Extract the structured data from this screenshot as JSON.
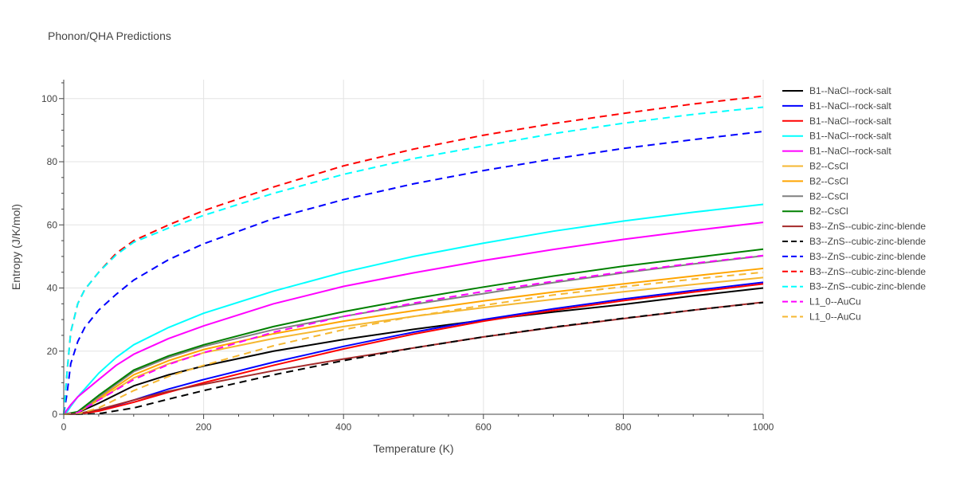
{
  "chart_data": {
    "type": "line",
    "title": "Phonon/QHA Predictions",
    "xlabel": "Temperature (K)",
    "ylabel": "Entropy (J/K/mol)",
    "xlim": [
      0,
      1000
    ],
    "ylim": [
      0,
      106
    ],
    "x_ticks": [
      0,
      200,
      400,
      600,
      800,
      1000
    ],
    "y_ticks": [
      0,
      20,
      40,
      60,
      80,
      100
    ],
    "grid": true,
    "legend_position": "right",
    "series": [
      {
        "name": "B1--NaCl--rock-salt",
        "color": "#000000",
        "dash": "solid",
        "x": [
          0,
          20,
          50,
          100,
          150,
          200,
          300,
          400,
          500,
          600,
          700,
          800,
          900,
          1000
        ],
        "y": [
          0,
          0.5,
          3.5,
          9,
          12.5,
          15.3,
          20,
          23.7,
          26.9,
          29.8,
          32.4,
          34.8,
          37.5,
          40
        ]
      },
      {
        "name": "B1--NaCl--rock-salt",
        "color": "#0000ff",
        "dash": "solid",
        "x": [
          0,
          20,
          50,
          100,
          150,
          200,
          300,
          400,
          500,
          600,
          700,
          800,
          900,
          1000
        ],
        "y": [
          0,
          0.1,
          1.2,
          4.5,
          8,
          11,
          16.5,
          21.5,
          26,
          30,
          33.4,
          36.5,
          39.2,
          41.8
        ]
      },
      {
        "name": "B1--NaCl--rock-salt",
        "color": "#ff0000",
        "dash": "solid",
        "x": [
          0,
          20,
          50,
          100,
          150,
          200,
          300,
          400,
          500,
          600,
          700,
          800,
          900,
          1000
        ],
        "y": [
          0,
          0.1,
          1,
          3.8,
          7,
          10,
          15.5,
          20.7,
          25.4,
          29.5,
          32.9,
          36,
          38.7,
          41.3
        ]
      },
      {
        "name": "B1--NaCl--rock-salt",
        "color": "#00ffff",
        "dash": "solid",
        "x": [
          0,
          5,
          10,
          20,
          50,
          75,
          100,
          150,
          200,
          300,
          400,
          500,
          600,
          700,
          800,
          900,
          1000
        ],
        "y": [
          0,
          0.8,
          2.5,
          5.5,
          13,
          18,
          22,
          27.5,
          32,
          39,
          45,
          50,
          54.2,
          58,
          61.2,
          64,
          66.5
        ]
      },
      {
        "name": "B1--NaCl--rock-salt",
        "color": "#ff00ff",
        "dash": "solid",
        "x": [
          0,
          5,
          10,
          20,
          50,
          75,
          100,
          150,
          200,
          300,
          400,
          500,
          600,
          700,
          800,
          900,
          1000
        ],
        "y": [
          0,
          1.5,
          3,
          5.5,
          11,
          15.5,
          19,
          24,
          28,
          35,
          40.5,
          44.8,
          48.7,
          52.2,
          55.4,
          58.2,
          60.8
        ]
      },
      {
        "name": "B2--CsCl",
        "color": "#f5b731",
        "dash": "solid",
        "x": [
          0,
          20,
          50,
          100,
          150,
          200,
          300,
          400,
          500,
          600,
          700,
          800,
          900,
          1000
        ],
        "y": [
          0,
          0.5,
          4.5,
          11.5,
          16,
          19.5,
          24,
          27.8,
          31,
          33.8,
          36.4,
          38.8,
          41.1,
          43.3
        ]
      },
      {
        "name": "B2--CsCl",
        "color": "#ffa500",
        "dash": "solid",
        "x": [
          0,
          20,
          50,
          100,
          150,
          200,
          300,
          400,
          500,
          600,
          700,
          800,
          900,
          1000
        ],
        "y": [
          0,
          0.5,
          5,
          12.5,
          17,
          20.5,
          25.5,
          29.5,
          32.8,
          35.9,
          38.7,
          41.3,
          43.8,
          46.2
        ]
      },
      {
        "name": "B2--CsCl",
        "color": "#808080",
        "dash": "solid",
        "x": [
          0,
          20,
          50,
          100,
          150,
          200,
          300,
          400,
          500,
          600,
          700,
          800,
          900,
          1000
        ],
        "y": [
          0,
          0.6,
          5.5,
          13.5,
          18,
          21.5,
          26.8,
          31,
          34.8,
          38.2,
          41.7,
          44.8,
          47.6,
          50.2
        ]
      },
      {
        "name": "B2--CsCl",
        "color": "#008000",
        "dash": "solid",
        "x": [
          0,
          20,
          50,
          100,
          150,
          200,
          300,
          400,
          500,
          600,
          700,
          800,
          900,
          1000
        ],
        "y": [
          0,
          0.8,
          6,
          14,
          18.5,
          22,
          27.8,
          32.5,
          36.6,
          40.3,
          43.8,
          46.9,
          49.6,
          52.3
        ]
      },
      {
        "name": "B3--ZnS--cubic-zinc-blende",
        "color": "#a52a2a",
        "dash": "solid",
        "x": [
          0,
          20,
          50,
          100,
          150,
          200,
          300,
          400,
          500,
          600,
          700,
          800,
          900,
          1000
        ],
        "y": [
          0,
          0.2,
          1.5,
          4.5,
          7.3,
          9.5,
          13.8,
          17.5,
          21,
          24.5,
          27.5,
          30.3,
          33,
          35.5
        ]
      },
      {
        "name": "B3--ZnS--cubic-zinc-blende",
        "color": "#000000",
        "dash": "dash",
        "x": [
          0,
          20,
          50,
          100,
          150,
          200,
          300,
          400,
          500,
          600,
          700,
          800,
          900,
          1000
        ],
        "y": [
          0,
          0,
          0.2,
          2,
          4.8,
          7.5,
          12.5,
          17,
          21,
          24.5,
          27.6,
          30.4,
          33,
          35.4
        ]
      },
      {
        "name": "B3--ZnS--cubic-zinc-blende",
        "color": "#0000ff",
        "dash": "dash",
        "x": [
          0,
          5,
          10,
          20,
          30,
          50,
          75,
          100,
          150,
          200,
          300,
          400,
          500,
          600,
          700,
          800,
          900,
          1000
        ],
        "y": [
          0,
          7,
          16,
          23,
          27.5,
          33,
          38,
          42.5,
          49,
          54,
          62,
          68,
          73,
          77.2,
          80.9,
          84.2,
          87,
          89.6
        ]
      },
      {
        "name": "B3--ZnS--cubic-zinc-blende",
        "color": "#ff0000",
        "dash": "dash",
        "x": [
          0,
          5,
          10,
          20,
          30,
          50,
          75,
          100,
          150,
          200,
          300,
          400,
          500,
          600,
          700,
          800,
          900,
          1000
        ],
        "y": [
          0,
          14,
          26,
          35,
          39.5,
          45,
          51,
          55,
          60,
          64.5,
          72,
          78.7,
          84,
          88.4,
          92.1,
          95.3,
          98.3,
          100.8
        ]
      },
      {
        "name": "B3--ZnS--cubic-zinc-blende",
        "color": "#00ffff",
        "dash": "dash",
        "x": [
          0,
          5,
          10,
          20,
          30,
          50,
          75,
          100,
          150,
          200,
          300,
          400,
          500,
          600,
          700,
          800,
          900,
          1000
        ],
        "y": [
          0,
          14,
          26,
          35,
          39.5,
          45,
          50.5,
          54.5,
          59,
          63,
          70,
          76,
          81,
          85,
          88.9,
          92.2,
          95,
          97.3
        ]
      },
      {
        "name": "L1_0--AuCu",
        "color": "#ff00ff",
        "dash": "dash",
        "x": [
          0,
          20,
          50,
          100,
          150,
          200,
          300,
          400,
          500,
          600,
          700,
          800,
          900,
          1000
        ],
        "y": [
          0,
          0.5,
          4.5,
          11,
          15.8,
          19.5,
          26,
          31,
          35.2,
          38.9,
          42.1,
          45.1,
          47.8,
          50.3
        ]
      },
      {
        "name": "L1_0--AuCu",
        "color": "#f5b731",
        "dash": "dash",
        "x": [
          0,
          20,
          50,
          100,
          150,
          200,
          300,
          400,
          500,
          600,
          700,
          800,
          900,
          1000
        ],
        "y": [
          0,
          0.1,
          2,
          7.5,
          12,
          15.5,
          21.7,
          26.8,
          31,
          34.5,
          37.8,
          40.4,
          42.8,
          45
        ]
      }
    ]
  }
}
